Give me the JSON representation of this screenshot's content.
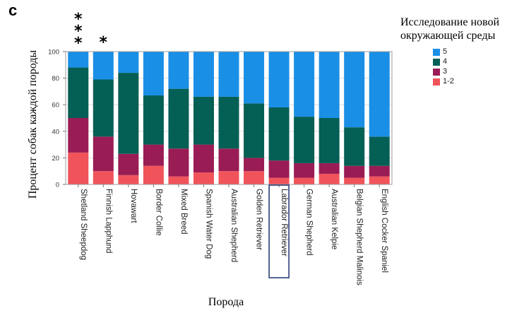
{
  "panel_letter": "c",
  "colors": {
    "5": "#1a8fe6",
    "4": "#045f55",
    "3": "#9a1c55",
    "1-2": "#f0545a",
    "frame": "#9e9e9e",
    "grid": "#dcdcdc",
    "highlight_box": "#2b3f7a"
  },
  "chart_data": {
    "type": "bar",
    "stacked": true,
    "normalized": true,
    "title": "",
    "xlabel": "Порода",
    "ylabel": "Процент собак каждой породы",
    "ylim": [
      0,
      100
    ],
    "yticks": [
      0,
      20,
      40,
      60,
      80,
      100
    ],
    "grid": true,
    "categories": [
      "Shetland Sheepdog",
      "Finnish Lapphund",
      "Hovawart",
      "Border Collie",
      "Mixed Breed",
      "Spanish Water Dog",
      "Australian Shepherd",
      "Golden Retriever",
      "Labrador Retriever",
      "German Shepherd",
      "Australian Kelpie",
      "Belgian Shepherd Malinois",
      "English Cocker Spaniel"
    ],
    "series": [
      {
        "name": "1-2",
        "values": [
          24,
          10,
          7,
          14,
          6,
          9,
          10,
          10,
          5,
          5,
          8,
          5,
          6
        ]
      },
      {
        "name": "3",
        "values": [
          26,
          26,
          16,
          16,
          21,
          21,
          17,
          10,
          13,
          11,
          8,
          9,
          8
        ]
      },
      {
        "name": "4",
        "values": [
          38,
          43,
          61,
          37,
          45,
          36,
          39,
          41,
          40,
          35,
          34,
          29,
          22
        ]
      },
      {
        "name": "5",
        "values": [
          12,
          21,
          16,
          33,
          28,
          34,
          34,
          39,
          42,
          49,
          50,
          57,
          64
        ]
      }
    ],
    "legend": {
      "title": "Исследование новой окружающей среды",
      "position": "right",
      "items": [
        "5",
        "4",
        "3",
        "1-2"
      ]
    },
    "annotations": [
      {
        "category": "Shetland Sheepdog",
        "text": "***"
      },
      {
        "category": "Finnish Lapphund",
        "text": "*"
      }
    ],
    "highlighted_category": "Labrador Retriever"
  }
}
